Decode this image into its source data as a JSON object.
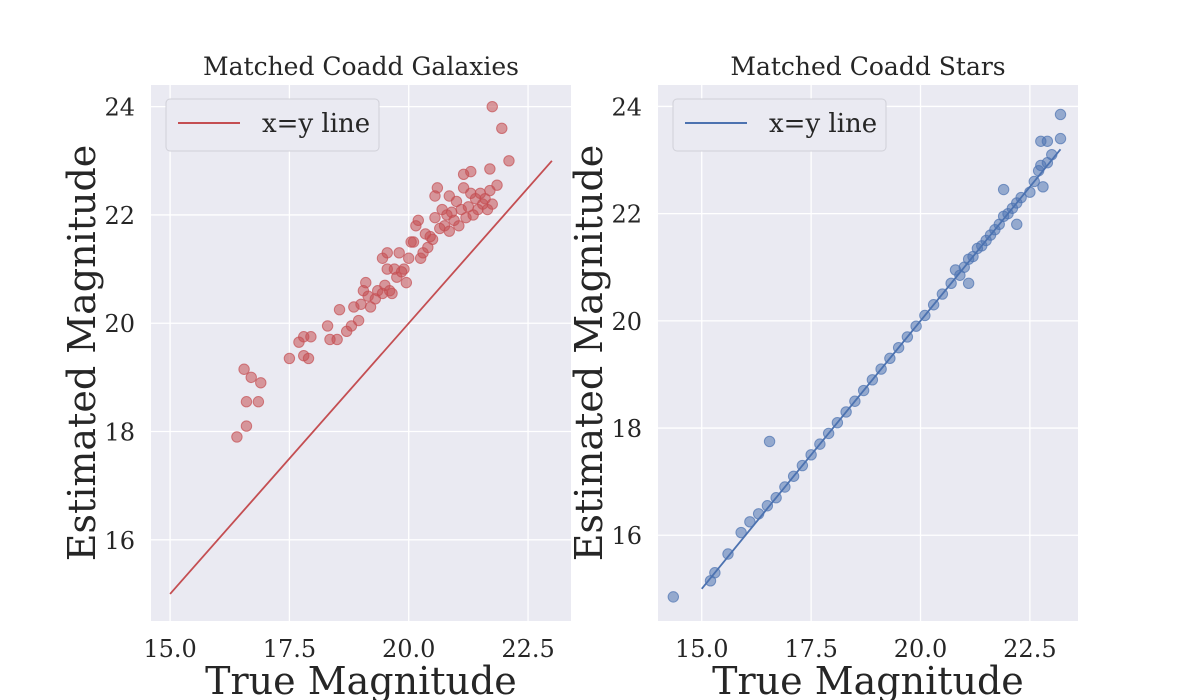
{
  "chart_data": [
    {
      "type": "scatter",
      "title": "Matched Coadd Galaxies",
      "xlabel": "True Magnitude",
      "ylabel": "Estimated Magnitude",
      "xlim": [
        14.6,
        23.4
      ],
      "ylim": [
        14.5,
        24.4
      ],
      "xticks": [
        15.0,
        17.5,
        20.0,
        22.5
      ],
      "xtick_labels": [
        "15.0",
        "17.5",
        "20.0",
        "22.5"
      ],
      "yticks": [
        16,
        18,
        20,
        22,
        24
      ],
      "ytick_labels": [
        "16",
        "18",
        "20",
        "22",
        "24"
      ],
      "grid": true,
      "legend_position": "top-left",
      "legend": [
        {
          "label": "x=y line",
          "color": "#c44e52"
        }
      ],
      "line": {
        "x": [
          15.0,
          23.0
        ],
        "y": [
          15.0,
          23.0
        ],
        "color": "#c44e52"
      },
      "point_color": "#c44e52",
      "points": [
        [
          16.4,
          17.9
        ],
        [
          16.6,
          18.1
        ],
        [
          16.6,
          18.55
        ],
        [
          16.85,
          18.55
        ],
        [
          16.55,
          19.15
        ],
        [
          16.7,
          19.0
        ],
        [
          16.9,
          18.9
        ],
        [
          17.5,
          19.35
        ],
        [
          17.8,
          19.4
        ],
        [
          17.9,
          19.35
        ],
        [
          17.7,
          19.65
        ],
        [
          17.8,
          19.75
        ],
        [
          17.95,
          19.75
        ],
        [
          18.3,
          19.95
        ],
        [
          18.35,
          19.7
        ],
        [
          18.5,
          19.7
        ],
        [
          18.55,
          20.25
        ],
        [
          18.7,
          19.85
        ],
        [
          18.8,
          19.95
        ],
        [
          18.85,
          20.3
        ],
        [
          18.95,
          20.05
        ],
        [
          19.0,
          20.35
        ],
        [
          19.05,
          20.6
        ],
        [
          19.1,
          20.75
        ],
        [
          19.15,
          20.5
        ],
        [
          19.2,
          20.3
        ],
        [
          19.3,
          20.45
        ],
        [
          19.35,
          20.6
        ],
        [
          19.45,
          20.55
        ],
        [
          19.5,
          20.7
        ],
        [
          19.55,
          21.0
        ],
        [
          19.6,
          20.6
        ],
        [
          19.65,
          20.55
        ],
        [
          19.7,
          21.0
        ],
        [
          19.55,
          21.3
        ],
        [
          19.45,
          21.2
        ],
        [
          19.75,
          20.85
        ],
        [
          19.8,
          21.3
        ],
        [
          19.85,
          20.95
        ],
        [
          19.9,
          21.0
        ],
        [
          19.95,
          20.75
        ],
        [
          20.0,
          21.2
        ],
        [
          20.05,
          21.5
        ],
        [
          20.1,
          21.5
        ],
        [
          20.15,
          21.8
        ],
        [
          20.2,
          21.9
        ],
        [
          20.25,
          21.2
        ],
        [
          20.3,
          21.3
        ],
        [
          20.35,
          21.65
        ],
        [
          20.4,
          21.4
        ],
        [
          20.45,
          21.6
        ],
        [
          20.5,
          21.55
        ],
        [
          20.55,
          21.95
        ],
        [
          20.55,
          22.35
        ],
        [
          20.6,
          22.5
        ],
        [
          20.65,
          21.75
        ],
        [
          20.7,
          22.1
        ],
        [
          20.75,
          21.8
        ],
        [
          20.8,
          22.0
        ],
        [
          20.85,
          21.7
        ],
        [
          20.85,
          22.35
        ],
        [
          20.9,
          22.05
        ],
        [
          20.95,
          21.9
        ],
        [
          21.0,
          22.25
        ],
        [
          21.05,
          21.8
        ],
        [
          21.1,
          22.1
        ],
        [
          21.15,
          22.5
        ],
        [
          21.15,
          22.75
        ],
        [
          21.2,
          21.95
        ],
        [
          21.25,
          22.15
        ],
        [
          21.3,
          22.8
        ],
        [
          21.3,
          22.4
        ],
        [
          21.35,
          22.0
        ],
        [
          21.4,
          22.3
        ],
        [
          21.45,
          22.1
        ],
        [
          21.5,
          22.4
        ],
        [
          21.55,
          22.2
        ],
        [
          21.6,
          22.3
        ],
        [
          21.65,
          22.1
        ],
        [
          21.7,
          22.45
        ],
        [
          21.75,
          22.2
        ],
        [
          21.7,
          22.85
        ],
        [
          21.85,
          22.55
        ],
        [
          21.75,
          24.0
        ],
        [
          21.95,
          23.6
        ],
        [
          22.1,
          23.0
        ]
      ]
    },
    {
      "type": "scatter",
      "title": "Matched Coadd Stars",
      "xlabel": "True Magnitude",
      "ylabel": "Estimated Magnitude",
      "xlim": [
        14.0,
        23.6
      ],
      "ylim": [
        14.4,
        24.4
      ],
      "xticks": [
        15.0,
        17.5,
        20.0,
        22.5
      ],
      "xtick_labels": [
        "15.0",
        "17.5",
        "20.0",
        "22.5"
      ],
      "yticks": [
        16,
        18,
        20,
        22,
        24
      ],
      "ytick_labels": [
        "16",
        "18",
        "20",
        "22",
        "24"
      ],
      "grid": true,
      "legend_position": "top-left",
      "legend": [
        {
          "label": "x=y line",
          "color": "#4c72b0"
        }
      ],
      "line": {
        "x": [
          15.0,
          23.2
        ],
        "y": [
          15.0,
          23.2
        ],
        "color": "#4c72b0"
      },
      "point_color": "#4c72b0",
      "points": [
        [
          14.35,
          14.85
        ],
        [
          15.2,
          15.15
        ],
        [
          15.3,
          15.3
        ],
        [
          15.6,
          15.65
        ],
        [
          15.9,
          16.05
        ],
        [
          16.1,
          16.25
        ],
        [
          16.3,
          16.4
        ],
        [
          16.5,
          16.55
        ],
        [
          16.55,
          17.75
        ],
        [
          16.7,
          16.7
        ],
        [
          16.9,
          16.9
        ],
        [
          17.1,
          17.1
        ],
        [
          17.3,
          17.3
        ],
        [
          17.5,
          17.5
        ],
        [
          17.7,
          17.7
        ],
        [
          17.9,
          17.9
        ],
        [
          18.1,
          18.1
        ],
        [
          18.3,
          18.3
        ],
        [
          18.5,
          18.5
        ],
        [
          18.7,
          18.7
        ],
        [
          18.9,
          18.9
        ],
        [
          19.1,
          19.1
        ],
        [
          19.3,
          19.3
        ],
        [
          19.5,
          19.5
        ],
        [
          19.7,
          19.7
        ],
        [
          19.9,
          19.9
        ],
        [
          20.1,
          20.1
        ],
        [
          20.3,
          20.3
        ],
        [
          20.5,
          20.5
        ],
        [
          20.7,
          20.7
        ],
        [
          20.8,
          20.95
        ],
        [
          20.9,
          20.85
        ],
        [
          21.0,
          21.0
        ],
        [
          21.1,
          21.15
        ],
        [
          21.2,
          21.2
        ],
        [
          21.1,
          20.7
        ],
        [
          21.3,
          21.35
        ],
        [
          21.4,
          21.4
        ],
        [
          21.5,
          21.5
        ],
        [
          21.6,
          21.6
        ],
        [
          21.7,
          21.7
        ],
        [
          21.8,
          21.8
        ],
        [
          21.9,
          21.95
        ],
        [
          22.0,
          22.0
        ],
        [
          22.1,
          22.1
        ],
        [
          22.2,
          22.2
        ],
        [
          22.3,
          22.3
        ],
        [
          21.9,
          22.45
        ],
        [
          22.2,
          21.8
        ],
        [
          22.5,
          22.4
        ],
        [
          22.6,
          22.6
        ],
        [
          22.7,
          22.8
        ],
        [
          22.8,
          22.5
        ],
        [
          22.75,
          22.9
        ],
        [
          22.9,
          22.95
        ],
        [
          23.0,
          23.1
        ],
        [
          22.75,
          23.35
        ],
        [
          22.9,
          23.35
        ],
        [
          23.2,
          23.4
        ],
        [
          23.2,
          23.85
        ]
      ]
    }
  ]
}
